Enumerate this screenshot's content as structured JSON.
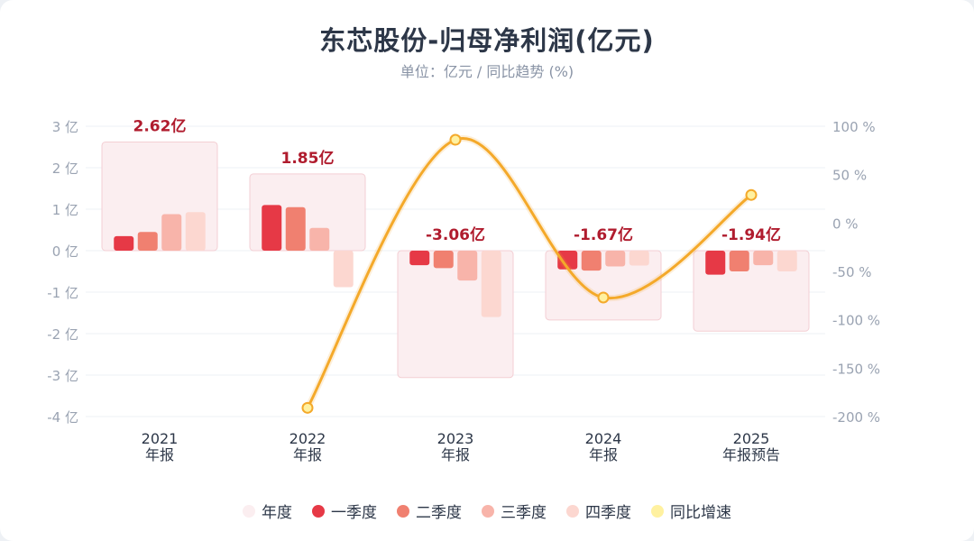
{
  "title": "东芯股份-归母净利润(亿元)",
  "subtitle": "单位：亿元 / 同比趋势 (%)",
  "colors": {
    "annual": "#fbeef0",
    "annual_border": "#f3cfd4",
    "q1": "#e63946",
    "q2": "#f08070",
    "q3": "#f8b4aa",
    "q4": "#fcd7d0",
    "line": "#f4a92a",
    "point_fill": "#fff1a0",
    "label": "#b01c2e"
  },
  "legend": [
    {
      "label": "年度",
      "color": "#fbeef0"
    },
    {
      "label": "一季度",
      "color": "#e63946"
    },
    {
      "label": "二季度",
      "color": "#f08070"
    },
    {
      "label": "三季度",
      "color": "#f8b4aa"
    },
    {
      "label": "四季度",
      "color": "#fcd7d0"
    },
    {
      "label": "同比增速",
      "color": "#fff1a0"
    }
  ],
  "chart_data": {
    "type": "bar",
    "title": "东芯股份-归母净利润(亿元)",
    "subtitle": "单位：亿元 / 同比趋势 (%)",
    "categories": [
      {
        "year": "2021",
        "type": "年报"
      },
      {
        "year": "2022",
        "type": "年报"
      },
      {
        "year": "2023",
        "type": "年报"
      },
      {
        "year": "2024",
        "type": "年报"
      },
      {
        "year": "2025",
        "type": "年报预告"
      }
    ],
    "annual": {
      "name": "年度",
      "values": [
        2.62,
        1.85,
        -3.06,
        -1.67,
        -1.94
      ],
      "labels": [
        "2.62亿",
        "1.85亿",
        "-3.06亿",
        "-1.67亿",
        "-1.94亿"
      ]
    },
    "series": [
      {
        "name": "一季度",
        "values": [
          0.35,
          1.1,
          -0.35,
          -0.45,
          -0.58
        ]
      },
      {
        "name": "二季度",
        "values": [
          0.45,
          1.05,
          -0.42,
          -0.48,
          -0.5
        ]
      },
      {
        "name": "三季度",
        "values": [
          0.88,
          0.55,
          -0.72,
          -0.38,
          -0.35
        ]
      },
      {
        "name": "四季度",
        "values": [
          0.93,
          -0.88,
          -1.6,
          -0.36,
          -0.5
        ]
      }
    ],
    "yoy": {
      "name": "同比增速",
      "values": [
        null,
        -191,
        86,
        -77,
        29
      ]
    },
    "y_left": {
      "ticks": [
        3,
        2,
        1,
        0,
        -1,
        -2,
        -3,
        -4
      ],
      "labels": [
        "3 亿",
        "2 亿",
        "1 亿",
        "0 亿",
        "-1 亿",
        "-2 亿",
        "-3 亿",
        "-4 亿"
      ],
      "range": [
        -4,
        3
      ]
    },
    "y_right": {
      "ticks": [
        100,
        50,
        0,
        -50,
        -100,
        -150,
        -200
      ],
      "labels": [
        "100 %",
        "50 %",
        "0 %",
        "-50 %",
        "-100 %",
        "-150 %",
        "-200 %"
      ],
      "range": [
        -200,
        100
      ]
    },
    "grid": true,
    "legend_position": "bottom"
  }
}
